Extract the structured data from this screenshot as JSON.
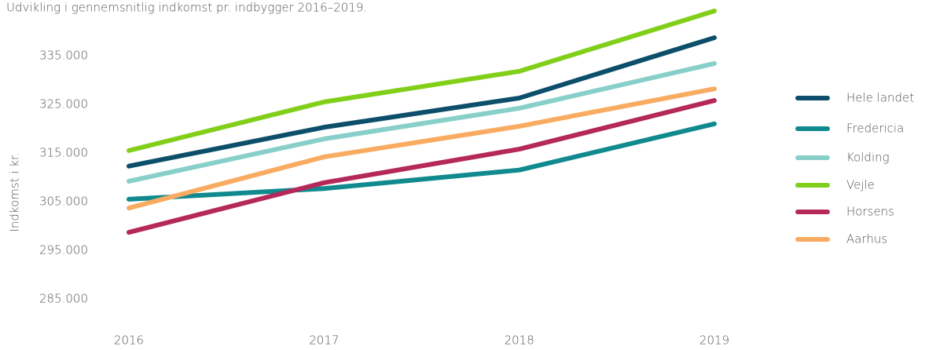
{
  "chart_data": {
    "type": "line",
    "title": "Udvikling i gennemsnitlig indkomst pr. indbygger 2016–2019.",
    "y_label": "Indkomst i kr.",
    "categories": [
      "2016",
      "2017",
      "2018",
      "2019"
    ],
    "series": [
      {
        "name": "Hele landet",
        "color": "#0d4f6b",
        "values": [
          312300,
          320300,
          326300,
          338700
        ]
      },
      {
        "name": "Fredericia",
        "color": "#108a8f",
        "values": [
          305500,
          307700,
          311500,
          321000
        ]
      },
      {
        "name": "Kolding",
        "color": "#88cfca",
        "values": [
          309200,
          317900,
          324200,
          333400
        ]
      },
      {
        "name": "Vejle",
        "color": "#82cf1a",
        "values": [
          315500,
          325500,
          331800,
          344200
        ]
      },
      {
        "name": "Horsens",
        "color": "#b5285a",
        "values": [
          298700,
          308900,
          315800,
          325800
        ]
      },
      {
        "name": "Aarhus",
        "color": "#f9ab61",
        "values": [
          303700,
          314200,
          320500,
          328200
        ]
      }
    ],
    "ylim": [
      285000,
      345000
    ],
    "yticks": [
      {
        "value": 285000,
        "label": "285.000"
      },
      {
        "value": 295000,
        "label": "295.000"
      },
      {
        "value": 305000,
        "label": "305.000"
      },
      {
        "value": 315000,
        "label": "315.000"
      },
      {
        "value": 325000,
        "label": "325.000"
      },
      {
        "value": 335000,
        "label": "335.000"
      }
    ],
    "grid": false,
    "legend": "right"
  }
}
